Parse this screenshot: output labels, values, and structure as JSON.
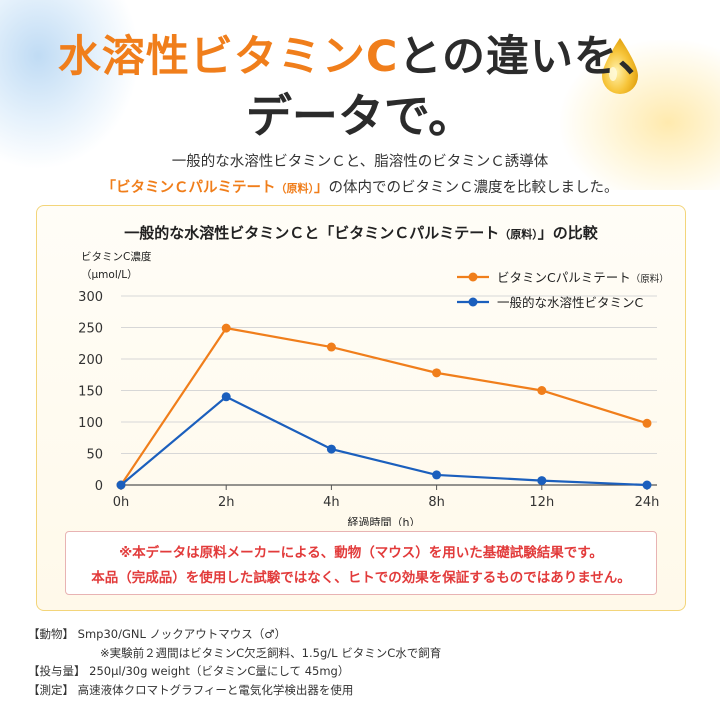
{
  "headline": {
    "line1_orange": "水溶性ビタミンC",
    "line1_dark": "との違いを、",
    "line2": "データで。"
  },
  "intro": {
    "line1": "一般的な水溶性ビタミンＣと、脂溶性のビタミンＣ誘導体",
    "line2_highlight": "「ビタミンＣパルミテート",
    "line2_highlight_small": "（原料）",
    "line2_highlight_end": "」",
    "line2_rest": "の体内でのビタミンＣ濃度を比較しました。"
  },
  "chart_data": {
    "type": "line",
    "title": "一般的な水溶性ビタミンＣと「ビタミンＣパルミテート",
    "title_small": "（原料）",
    "title_end": "」の比較",
    "ylabel_line1": "ビタミンC濃度",
    "ylabel_line2": "（μmol/L）",
    "xlabel": "経過時間（h）",
    "categories": [
      "0h",
      "2h",
      "4h",
      "8h",
      "12h",
      "24h"
    ],
    "yticks": [
      "0",
      "50",
      "100",
      "150",
      "200",
      "250",
      "300"
    ],
    "ylim": [
      0,
      300
    ],
    "grid": true,
    "legend_position": "top-right",
    "series": [
      {
        "name": "ビタミンCパルミテート",
        "name_small": "（原料）",
        "color": "#f07e1b",
        "values": [
          0,
          249,
          219,
          178,
          150,
          98
        ]
      },
      {
        "name": "一般的な水溶性ビタミンC",
        "name_small": "",
        "color": "#1b5fbd",
        "values": [
          0,
          140,
          57,
          16,
          7,
          0
        ]
      }
    ]
  },
  "note": {
    "line1": "※本データは原料メーカーによる、動物（マウス）を用いた基礎試験結果です。",
    "line2": "本品（完成品）を使用した試験ではなく、ヒトでの効果を保証するものではありません。"
  },
  "footer": {
    "animal_label": "【動物】",
    "animal_text": "Smp30/GNL ノックアウトマウス（♂）",
    "animal_note": "※実験前２週間はビタミンC欠乏飼料、1.5g/L ビタミンC水で飼育",
    "dose_label": "【投与量】",
    "dose_text": "250μl/30g weight（ビタミンC量にして 45mg）",
    "measure_label": "【測定】",
    "measure_text": "高速液体クロマトグラフィーと電気化学検出器を使用"
  }
}
